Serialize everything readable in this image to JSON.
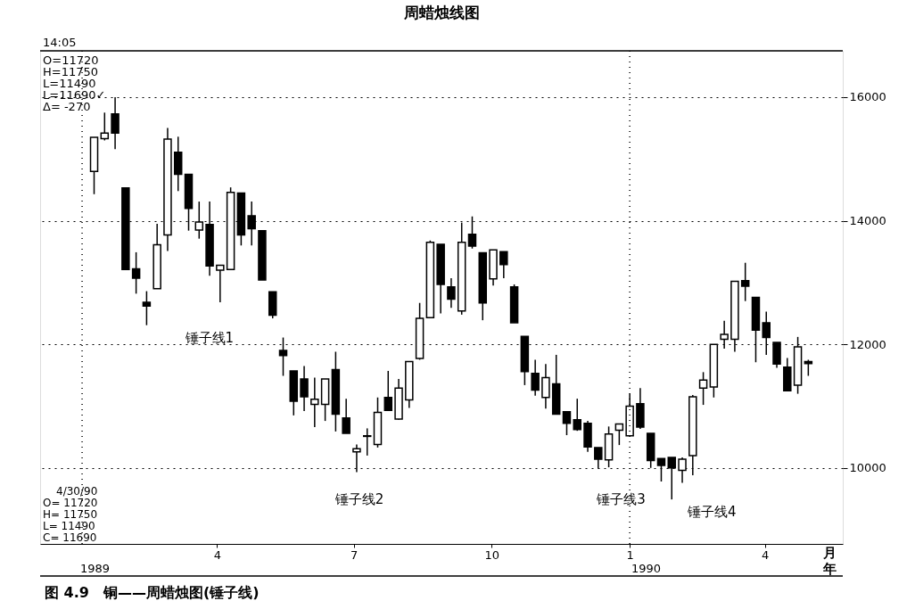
{
  "chart_data": {
    "type": "candlestick",
    "title": "周蜡烛线图",
    "x": [
      "1989-01-09",
      "1989-01-16",
      "1989-01-23",
      "1989-01-30",
      "1989-02-06",
      "1989-02-13",
      "1989-02-20",
      "1989-02-27",
      "1989-03-06",
      "1989-03-13",
      "1989-03-20",
      "1989-03-27",
      "1989-04-03",
      "1989-04-10",
      "1989-04-17",
      "1989-04-24",
      "1989-05-01",
      "1989-05-08",
      "1989-05-15",
      "1989-05-22",
      "1989-05-29",
      "1989-06-05",
      "1989-06-12",
      "1989-06-19",
      "1989-06-26",
      "1989-07-03",
      "1989-07-10",
      "1989-07-17",
      "1989-07-24",
      "1989-07-31",
      "1989-08-07",
      "1989-08-14",
      "1989-08-21",
      "1989-08-28",
      "1989-09-04",
      "1989-09-11",
      "1989-09-18",
      "1989-09-25",
      "1989-10-02",
      "1989-10-09",
      "1989-10-16",
      "1989-10-23",
      "1989-10-30",
      "1989-11-06",
      "1989-11-13",
      "1989-11-20",
      "1989-11-27",
      "1989-12-04",
      "1989-12-11",
      "1989-12-18",
      "1989-12-25",
      "1990-01-01",
      "1990-01-08",
      "1990-01-15",
      "1990-01-22",
      "1990-01-29",
      "1990-02-05",
      "1990-02-12",
      "1990-02-19",
      "1990-02-26",
      "1990-03-05",
      "1990-03-12",
      "1990-03-19",
      "1990-03-26",
      "1990-04-02",
      "1990-04-09",
      "1990-04-16",
      "1990-04-23",
      "1990-04-30"
    ],
    "ohlc": [
      [
        14800,
        15350,
        14430,
        15350
      ],
      [
        15330,
        15750,
        15300,
        15420
      ],
      [
        15730,
        16000,
        15160,
        15420
      ],
      [
        14530,
        14530,
        13210,
        13210
      ],
      [
        13220,
        13490,
        12820,
        13070
      ],
      [
        12680,
        12860,
        12310,
        12620
      ],
      [
        12900,
        13950,
        12900,
        13610
      ],
      [
        13770,
        15500,
        13510,
        15320
      ],
      [
        15110,
        15360,
        14480,
        14750
      ],
      [
        14750,
        14750,
        13840,
        14200
      ],
      [
        13850,
        14310,
        13710,
        13980
      ],
      [
        13940,
        14310,
        13110,
        13270
      ],
      [
        13200,
        13280,
        12680,
        13280
      ],
      [
        13210,
        14540,
        13210,
        14460
      ],
      [
        14450,
        14450,
        13600,
        13770
      ],
      [
        14080,
        14310,
        13600,
        13870
      ],
      [
        13840,
        13840,
        13040,
        13040
      ],
      [
        12850,
        12850,
        12420,
        12470
      ],
      [
        11900,
        12110,
        11490,
        11820
      ],
      [
        11570,
        11570,
        10850,
        11080
      ],
      [
        11440,
        11650,
        10920,
        11150
      ],
      [
        11030,
        11460,
        10660,
        11110
      ],
      [
        11030,
        11440,
        10760,
        11440
      ],
      [
        11590,
        11880,
        10590,
        10870
      ],
      [
        10810,
        11120,
        10560,
        10560
      ],
      [
        10260,
        10380,
        9930,
        10310
      ],
      [
        10510,
        10640,
        10200,
        10520
      ],
      [
        10380,
        11140,
        10330,
        10900
      ],
      [
        11140,
        11570,
        10930,
        10930
      ],
      [
        10790,
        11440,
        10780,
        11290
      ],
      [
        11100,
        11720,
        10970,
        11720
      ],
      [
        11770,
        12670,
        11750,
        12420
      ],
      [
        12430,
        13680,
        12430,
        13650
      ],
      [
        13620,
        13620,
        12500,
        12970
      ],
      [
        12930,
        13070,
        12590,
        12730
      ],
      [
        12540,
        13970,
        12480,
        13650
      ],
      [
        13780,
        14070,
        13550,
        13590
      ],
      [
        13480,
        13480,
        12390,
        12670
      ],
      [
        13060,
        13530,
        12950,
        13530
      ],
      [
        13500,
        13500,
        13070,
        13290
      ],
      [
        12930,
        12970,
        12350,
        12350
      ],
      [
        12130,
        12130,
        11340,
        11560
      ],
      [
        11530,
        11750,
        11170,
        11260
      ],
      [
        11140,
        11680,
        10960,
        11460
      ],
      [
        11360,
        11830,
        10870,
        10870
      ],
      [
        10910,
        10910,
        10530,
        10720
      ],
      [
        10780,
        11120,
        10600,
        10620
      ],
      [
        10720,
        10760,
        10260,
        10340
      ],
      [
        10330,
        10330,
        9990,
        10140
      ],
      [
        10130,
        10670,
        10010,
        10550
      ],
      [
        10610,
        10710,
        10370,
        10710
      ],
      [
        10520,
        11200,
        10520,
        11000
      ],
      [
        11040,
        11290,
        10630,
        10660
      ],
      [
        10560,
        10560,
        10000,
        10120
      ],
      [
        10150,
        10150,
        9780,
        10040
      ],
      [
        10170,
        10170,
        9490,
        10000
      ],
      [
        9960,
        10170,
        9760,
        10140
      ],
      [
        10200,
        11180,
        9880,
        11150
      ],
      [
        11290,
        11550,
        11020,
        11420
      ],
      [
        11310,
        12000,
        11140,
        12000
      ],
      [
        12080,
        12380,
        11930,
        12160
      ],
      [
        12080,
        13020,
        11880,
        13020
      ],
      [
        13030,
        13320,
        12700,
        12940
      ],
      [
        12760,
        12760,
        11710,
        12230
      ],
      [
        12350,
        12530,
        11830,
        12110
      ],
      [
        12030,
        12030,
        11620,
        11680
      ],
      [
        11630,
        11780,
        11250,
        11250
      ],
      [
        11340,
        12120,
        11200,
        11960
      ],
      [
        11720,
        11750,
        11490,
        11690
      ]
    ],
    "xlim": [
      "1988-12-07",
      "1990-05-20"
    ],
    "xticks": [
      {
        "value": "1989-04-01",
        "label": "4"
      },
      {
        "value": "1989-07-01",
        "label": "7"
      },
      {
        "value": "1989-10-01",
        "label": "10"
      },
      {
        "value": "1990-01-01",
        "label": "1"
      },
      {
        "value": "1990-04-01",
        "label": "4"
      }
    ],
    "ylim": [
      8770,
      16750
    ],
    "yticks": [
      10000,
      12000,
      14000,
      16000
    ],
    "grid": "y",
    "ref_lines": [
      {
        "axis": "x",
        "value": "1989-01-01",
        "label": null,
        "line_style": "dotted"
      },
      {
        "axis": "x",
        "value": "1990-01-01",
        "label": null,
        "line_style": "dotted"
      }
    ],
    "annotations": [
      "14:05",
      "O=11720",
      "H=11750",
      "L=11490",
      "L=11690✓",
      "Δ= -270",
      "4/30/90",
      "O= 11720",
      "H= 11750",
      "L= 11490",
      "C= 11690",
      "1989",
      "1990",
      "月",
      "年",
      "图 4.9　铜——周蜡烛图(锤子线)",
      {
        "text": "锤子线1",
        "x": "1989-04-03",
        "y": 12680
      },
      {
        "text": "锤子线2",
        "x": "1989-07-03",
        "y": 9930
      },
      {
        "text": "锤子线3",
        "x": "1990-01-22",
        "y": 9780
      },
      {
        "text": "锤子线4",
        "x": "1990-01-29",
        "y": 9490
      }
    ]
  }
}
